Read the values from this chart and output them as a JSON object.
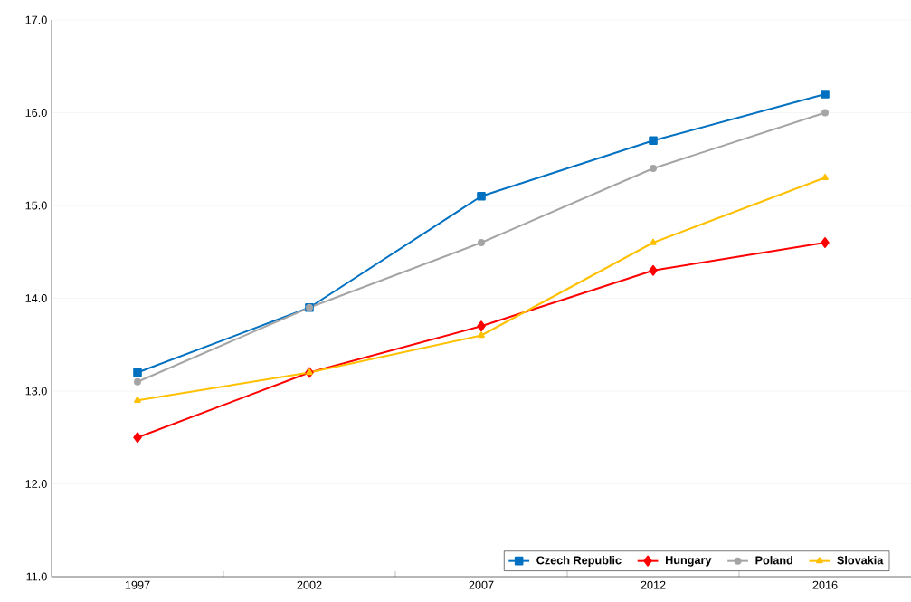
{
  "chart_data": {
    "type": "line",
    "categories": [
      "1997",
      "2002",
      "2007",
      "2012",
      "2016"
    ],
    "series": [
      {
        "name": "Czech Republic",
        "color": "#0070c0",
        "marker": "square",
        "values": [
          13.2,
          13.9,
          15.1,
          15.7,
          16.2
        ]
      },
      {
        "name": "Hungary",
        "color": "#ff0000",
        "marker": "diamond",
        "values": [
          12.5,
          13.2,
          13.7,
          14.3,
          14.6
        ]
      },
      {
        "name": "Poland",
        "color": "#a5a5a5",
        "marker": "circle",
        "values": [
          13.1,
          13.9,
          14.6,
          15.4,
          16.0
        ]
      },
      {
        "name": "Slovakia",
        "color": "#ffc000",
        "marker": "triangle",
        "values": [
          12.9,
          13.2,
          13.6,
          14.6,
          15.3
        ]
      }
    ],
    "ylim": [
      11,
      17
    ],
    "yticks": [
      {
        "value": 11,
        "label": "11.0"
      },
      {
        "value": 12,
        "label": "12.0"
      },
      {
        "value": 13,
        "label": "13.0"
      },
      {
        "value": 14,
        "label": "14.0"
      },
      {
        "value": 15,
        "label": "15.0"
      },
      {
        "value": 16,
        "label": "16.0"
      },
      {
        "value": 17,
        "label": "17.0"
      }
    ],
    "grid": "y",
    "legend": "bottom right",
    "line_style": "solid"
  }
}
